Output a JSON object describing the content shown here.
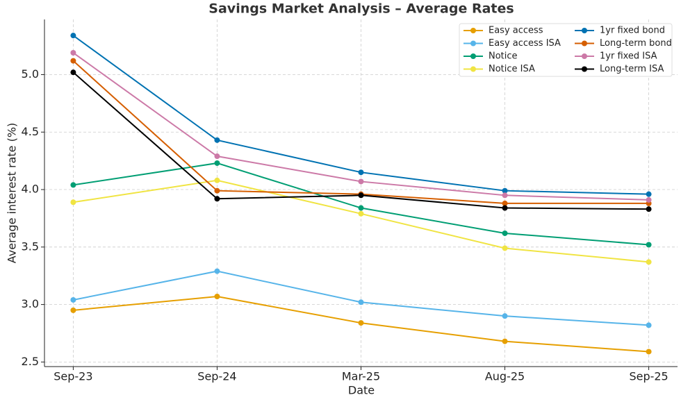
{
  "chart_data": {
    "type": "line",
    "title": "Savings Market Analysis – Average Rates",
    "x_label": "Date",
    "y_label": "Average interest rate (%)",
    "categories": [
      "Sep-23",
      "Sep-24",
      "Mar-25",
      "Aug-25",
      "Sep-25"
    ],
    "series": [
      {
        "name": "Easy access",
        "color": "#E69F00",
        "values": [
          2.95,
          3.07,
          2.84,
          2.68,
          2.59
        ]
      },
      {
        "name": "Easy access ISA",
        "color": "#56B4E9",
        "values": [
          3.04,
          3.29,
          3.02,
          2.9,
          2.82
        ]
      },
      {
        "name": "Notice",
        "color": "#009E73",
        "values": [
          4.04,
          4.23,
          3.84,
          3.62,
          3.52
        ]
      },
      {
        "name": "Notice ISA",
        "color": "#F0E442",
        "values": [
          3.89,
          4.08,
          3.79,
          3.49,
          3.37
        ]
      },
      {
        "name": "1yr fixed bond",
        "color": "#0072B2",
        "values": [
          5.34,
          4.43,
          4.15,
          3.99,
          3.96
        ]
      },
      {
        "name": "Long-term bond",
        "color": "#D55E00",
        "values": [
          5.12,
          3.99,
          3.96,
          3.88,
          3.88
        ]
      },
      {
        "name": "1yr fixed ISA",
        "color": "#CC79A7",
        "values": [
          5.19,
          4.29,
          4.07,
          3.95,
          3.91
        ]
      },
      {
        "name": "Long-term ISA",
        "color": "#000000",
        "values": [
          5.02,
          3.92,
          3.95,
          3.84,
          3.83
        ]
      }
    ],
    "ylim": [
      2.46,
      5.48
    ],
    "yticks": [
      2.5,
      {
        "value": 3.0,
        "label": "3.0"
      },
      3.5,
      {
        "value": 4.0,
        "label": "4.0"
      },
      4.5,
      {
        "value": 5.0,
        "label": "5.0"
      }
    ],
    "grid": true,
    "legend": "upper right"
  }
}
